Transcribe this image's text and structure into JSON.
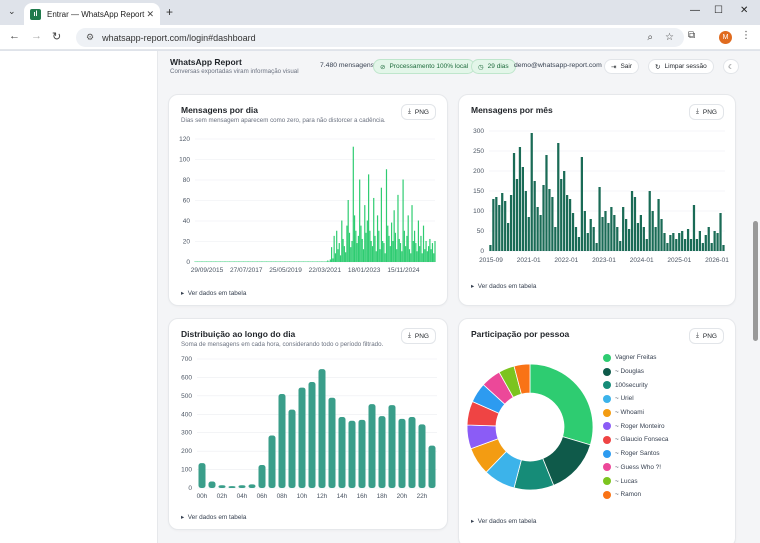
{
  "browser": {
    "tab_title": "Entrar — WhatsApp Report",
    "tab_favicon": "whatsapp-report-favicon",
    "url": "whatsapp-report.com/login#dashboard",
    "profile_initial": "M"
  },
  "header": {
    "title": "WhatsApp Report",
    "subtitle": "Conversas exportadas viram informação visual",
    "messages": "7.480 mensagens",
    "processing": "Processamento 100% local",
    "days": "29 dias",
    "email": "demo@whatsapp-report.com",
    "logout": "Sair",
    "clear": "Limpar sessão"
  },
  "common": {
    "png": "PNG",
    "table_link": "Ver dados em tabela"
  },
  "cards": {
    "daily": {
      "title": "Mensagens por dia",
      "subtitle": "Dias sem mensagem aparecem como zero, para não distorcer a cadência."
    },
    "monthly": {
      "title": "Mensagens por mês"
    },
    "hourly": {
      "title": "Distribuição ao longo do dia",
      "subtitle": "Soma de mensagens em cada hora, considerando todo o período filtrado."
    },
    "people": {
      "title": "Participação por pessoa"
    }
  },
  "chart_data": [
    {
      "id": "daily",
      "type": "line",
      "title": "Mensagens por dia",
      "color": "#2ecc71",
      "x_ticks": [
        "29/09/2015",
        "27/07/2017",
        "25/05/2019",
        "22/03/2021",
        "18/01/2023",
        "15/11/2024"
      ],
      "y_ticks": [
        0,
        20,
        40,
        60,
        80,
        100,
        120
      ],
      "ylim": [
        0,
        120
      ],
      "samples_per_week_note": "",
      "values": [
        0,
        0,
        0,
        0,
        0,
        0,
        0,
        0,
        0,
        0,
        0,
        0,
        0,
        0,
        0,
        0,
        0,
        0,
        0,
        0,
        0,
        0,
        0,
        0,
        0,
        0,
        0,
        0,
        0,
        0,
        0,
        0,
        0,
        0,
        0,
        0,
        0,
        0,
        0,
        0,
        0,
        0,
        0,
        0,
        0,
        0,
        0,
        0,
        0,
        0,
        0,
        0,
        0,
        0,
        0,
        0,
        0,
        0,
        0,
        0,
        0,
        0,
        0,
        0,
        0,
        0,
        0,
        0,
        0,
        0,
        0,
        0,
        0,
        0,
        0,
        0,
        0,
        0,
        0,
        0,
        0,
        0,
        0,
        0,
        0,
        0,
        0,
        0,
        0,
        0,
        0,
        0,
        0,
        0,
        0,
        0,
        0,
        0,
        0,
        0,
        0,
        0,
        0,
        0,
        1,
        0,
        2,
        14,
        3,
        25,
        8,
        30,
        12,
        18,
        6,
        40,
        22,
        15,
        9,
        35,
        60,
        28,
        14,
        20,
        112,
        45,
        30,
        18,
        25,
        80,
        35,
        22,
        12,
        55,
        28,
        40,
        85,
        30,
        20,
        15,
        62,
        25,
        10,
        45,
        30,
        12,
        72,
        20,
        18,
        8,
        90,
        35,
        25,
        15,
        38,
        20,
        50,
        28,
        12,
        65,
        22,
        18,
        10,
        80,
        30,
        15,
        25,
        45,
        12,
        8,
        55,
        20,
        30,
        18,
        10,
        40,
        15,
        25,
        8,
        35,
        12,
        20,
        10,
        15,
        22,
        12,
        18,
        8,
        20
      ]
    },
    {
      "id": "monthly",
      "type": "bar",
      "title": "Mensagens por mês",
      "color": "#1a6b56",
      "x_ticks": [
        "2015-09",
        "2021-01",
        "2022-01",
        "2023-01",
        "2024-01",
        "2025-01",
        "2026-01"
      ],
      "y_ticks": [
        0,
        50,
        100,
        150,
        200,
        250,
        300
      ],
      "ylim": [
        0,
        300
      ],
      "values": [
        15,
        130,
        135,
        115,
        145,
        125,
        70,
        140,
        245,
        180,
        260,
        210,
        150,
        85,
        295,
        175,
        110,
        90,
        165,
        240,
        155,
        135,
        60,
        270,
        180,
        200,
        140,
        130,
        95,
        60,
        35,
        235,
        100,
        45,
        80,
        60,
        20,
        160,
        85,
        100,
        70,
        110,
        90,
        60,
        25,
        110,
        80,
        55,
        150,
        135,
        70,
        90,
        60,
        30,
        150,
        100,
        60,
        130,
        80,
        45,
        20,
        40,
        45,
        30,
        45,
        50,
        30,
        55,
        30,
        115,
        30,
        50,
        20,
        40,
        60,
        20,
        50,
        45,
        95,
        15
      ]
    },
    {
      "id": "hourly",
      "type": "bar",
      "title": "Distribuição ao longo do dia",
      "color": "#3a9e8a",
      "categories": [
        "00h",
        "01h",
        "02h",
        "03h",
        "04h",
        "05h",
        "06h",
        "07h",
        "08h",
        "09h",
        "10h",
        "11h",
        "12h",
        "13h",
        "14h",
        "15h",
        "16h",
        "17h",
        "18h",
        "19h",
        "20h",
        "21h",
        "22h",
        "23h"
      ],
      "x_ticks": [
        "00h",
        "02h",
        "04h",
        "06h",
        "08h",
        "10h",
        "12h",
        "14h",
        "16h",
        "18h",
        "20h",
        "22h"
      ],
      "y_ticks": [
        0,
        100,
        200,
        300,
        400,
        500,
        600,
        700
      ],
      "ylim": [
        0,
        700
      ],
      "values": [
        135,
        35,
        15,
        10,
        15,
        20,
        125,
        285,
        510,
        425,
        545,
        575,
        645,
        490,
        385,
        365,
        370,
        455,
        390,
        450,
        375,
        385,
        345,
        230
      ]
    },
    {
      "id": "people",
      "type": "pie",
      "title": "Participação por pessoa",
      "labels": [
        "Vagner Freitas",
        "~ Douglas",
        "100security",
        "~ Uriel",
        "~ Whoami",
        "~ Roger Monteiro",
        "~ Glaucio Fonseca",
        "~ Roger Santos",
        "~ Guess Who ?!",
        "~ Lucas",
        "~ Ramon"
      ],
      "values": [
        29,
        14,
        10,
        8,
        7,
        6,
        6,
        5,
        5,
        4,
        4
      ],
      "colors": [
        "#2ecc71",
        "#0f5a4a",
        "#168c78",
        "#3cb3ea",
        "#f39c12",
        "#8b5cf6",
        "#ef4444",
        "#2d9bf0",
        "#ec4899",
        "#7cc41f",
        "#f97316"
      ]
    }
  ]
}
